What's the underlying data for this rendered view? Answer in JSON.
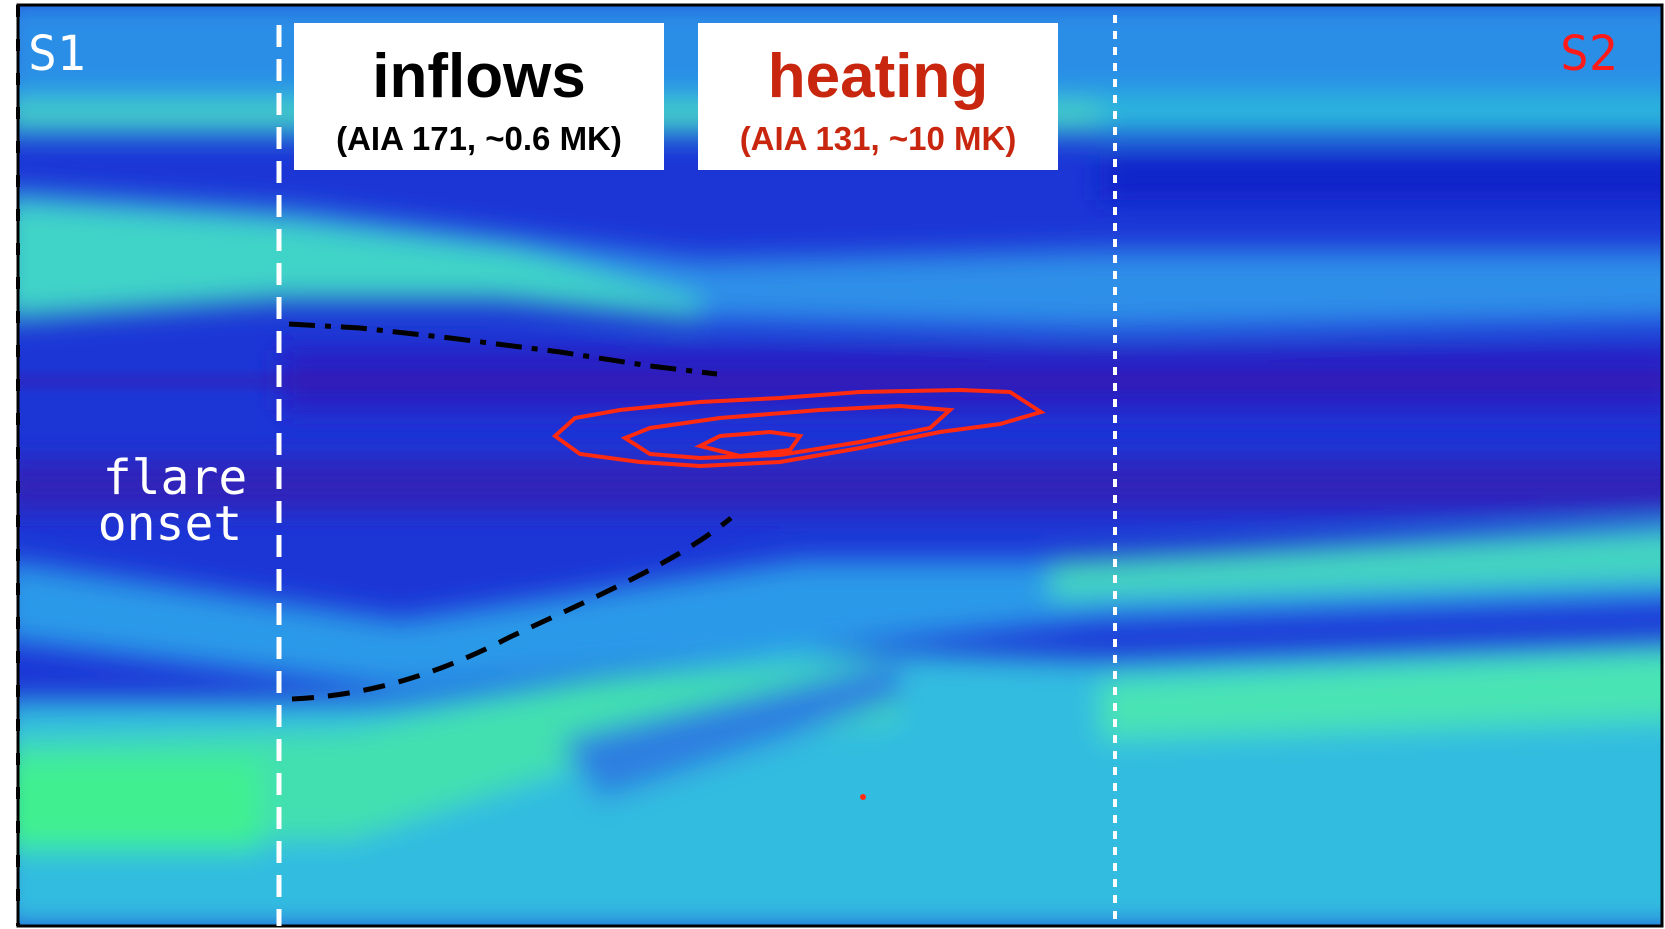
{
  "labels": {
    "s1": "S1",
    "s2": "S2",
    "flare": "flare",
    "onset": "onset"
  },
  "boxes": [
    {
      "title": "inflows",
      "subtitle": "(AIA 171, ~0.6 MK)"
    },
    {
      "title": "heating",
      "subtitle": "(AIA 131, ~10 MK)"
    }
  ]
}
